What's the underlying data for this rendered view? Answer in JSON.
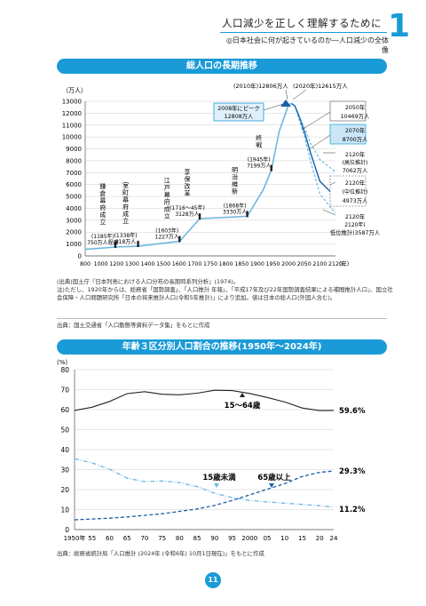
{
  "header": {
    "title": "人口減少を正しく理解するために",
    "subtitle": "◎日本社会に何が起きているのか―人口減少の全体像",
    "chapter": "1"
  },
  "chart1": {
    "banner": "総人口の長期推移",
    "ylabel": "（万人）",
    "xunit": "(年)",
    "y_ticks": [
      0,
      1000,
      2000,
      3000,
      4000,
      5000,
      6000,
      7000,
      8000,
      9000,
      10000,
      11000,
      12000,
      13000
    ],
    "x_ticks": [
      800,
      1000,
      1200,
      1300,
      1400,
      1500,
      1600,
      1700,
      1750,
      1800,
      1850,
      1900,
      1950,
      2000,
      2050,
      2100,
      2120
    ],
    "annotations": {
      "kamakura": "鎌倉幕府成立",
      "kamakura_val": "(1185年)750万人程度",
      "muromachi": "室町幕府成立",
      "muromachi_val": "(1338年)818万人",
      "edo": "江戸幕府成立",
      "edo_val": "(1603年)1227万人",
      "kyoho": "享保改革",
      "kyoho_val": "(1716〜45年)3128万人",
      "meiji": "明治維新",
      "meiji_val": "(1868年)3330万人",
      "shusen": "終戦",
      "shusen_val": "(1945年)7199万人",
      "y2010": "(2010年)12806万人",
      "y2020": "(2020年)12615万人",
      "peak": "2008年にピーク12808万人",
      "y2050": "2050年10469万人",
      "y2070": "2070年8700万人",
      "y2120": "2120年",
      "high": "(高位推計)7062万人",
      "mid": "2120年(中位推計)4973万人",
      "low": "2120年(低位推計)3587万人"
    },
    "notes": [
      "(出典)国土庁『日本列島における人口分布の長期時系列分析』(1974)。",
      "注)ただし、1920年からは、総務省「国勢調査」、「人口推計 年報」、「平成17年及び22年国勢調査結果による補間推計人口」、国立社会保障・人口問題研究所「日本の将来推計人口(令和5年推計)」により追加。値は日本の総人口(外国人含む)。"
    ],
    "source": "出典：国土交通省「人口動態等資料データ集」をもとに作成"
  },
  "chart_data": [
    {
      "type": "line",
      "title": "総人口の長期推移",
      "ylabel": "（万人）",
      "xlabel": "(年)",
      "ylim": [
        0,
        13000
      ],
      "series": [
        {
          "x": [
            800,
            1000,
            1185,
            1338,
            1603,
            1716,
            1868,
            1920,
            1945,
            1970,
            2000,
            2008,
            2010,
            2020,
            2030,
            2050,
            2070,
            2100,
            2120
          ],
          "values": [
            550,
            650,
            750,
            818,
            1227,
            3128,
            3330,
            5596,
            7199,
            10467,
            12693,
            12808,
            12806,
            12615,
            12000,
            10469,
            8700,
            6277,
            4973
          ]
        },
        {
          "x": [
            2020,
            2050,
            2070,
            2100,
            2120
          ],
          "values": [
            12615,
            10800,
            9500,
            8100,
            7062
          ]
        },
        {
          "x": [
            2020,
            2050,
            2070,
            2100,
            2120
          ],
          "values": [
            12615,
            10100,
            8000,
            5200,
            3587
          ]
        }
      ]
    },
    {
      "type": "line",
      "title": "年齢３区分別人口割合の推移(1950年〜2024年)",
      "ylabel": "(%)",
      "ylim": [
        0,
        80
      ],
      "categories": [
        "1950年",
        "55",
        "60",
        "65",
        "70",
        "75",
        "80",
        "85",
        "90",
        "95",
        "2000",
        "05",
        "10",
        "15",
        "20",
        "24"
      ],
      "series": [
        {
          "name": "15〜64歳",
          "x": [
            1950,
            1955,
            1960,
            1965,
            1970,
            1975,
            1980,
            1985,
            1990,
            1995,
            2000,
            2005,
            2010,
            2015,
            2020,
            2024
          ],
          "values": [
            59.6,
            61.2,
            64.1,
            68.0,
            69.0,
            67.7,
            67.4,
            68.2,
            69.7,
            69.5,
            68.1,
            66.1,
            63.8,
            60.8,
            59.5,
            59.6
          ]
        },
        {
          "name": "15歳未満",
          "x": [
            1950,
            1955,
            1960,
            1965,
            1970,
            1975,
            1980,
            1985,
            1990,
            1995,
            2000,
            2005,
            2010,
            2015,
            2020,
            2024
          ],
          "values": [
            35.4,
            33.4,
            30.2,
            25.7,
            24.0,
            24.3,
            23.5,
            21.5,
            18.2,
            16.0,
            14.6,
            13.8,
            13.2,
            12.6,
            11.9,
            11.2
          ]
        },
        {
          "name": "65歳以上",
          "x": [
            1950,
            1955,
            1960,
            1965,
            1970,
            1975,
            1980,
            1985,
            1990,
            1995,
            2000,
            2005,
            2010,
            2015,
            2020,
            2024
          ],
          "values": [
            4.9,
            5.3,
            5.7,
            6.3,
            7.1,
            7.9,
            9.1,
            10.3,
            12.1,
            14.6,
            17.4,
            20.2,
            23.0,
            26.6,
            28.6,
            29.3
          ]
        }
      ]
    }
  ],
  "chart2": {
    "banner": "年齢３区分別人口割合の推移(1950年〜2024年)",
    "ylabel": "(%)",
    "y_ticks": [
      0,
      10,
      20,
      30,
      40,
      50,
      60,
      70,
      80
    ],
    "x_ticks": [
      "1950年",
      "55",
      "60",
      "65",
      "70",
      "75",
      "80",
      "85",
      "90",
      "95",
      "2000",
      "05",
      "10",
      "15",
      "20",
      "24"
    ],
    "label_working": "15〜64歳",
    "label_child": "15歳未満",
    "label_elder": "65歳以上",
    "end_working": "59.6%",
    "end_elder": "29.3%",
    "end_child": "11.2%",
    "source": "出典：総務省統計局「人口推計 (2024年 (令和6年) 10月1日現在)」をもとに作成"
  },
  "page_number": "11",
  "colors": {
    "accent": "#1a9bd7",
    "line_light": "#6fb7e0",
    "line_dark": "#1a5fa6"
  }
}
